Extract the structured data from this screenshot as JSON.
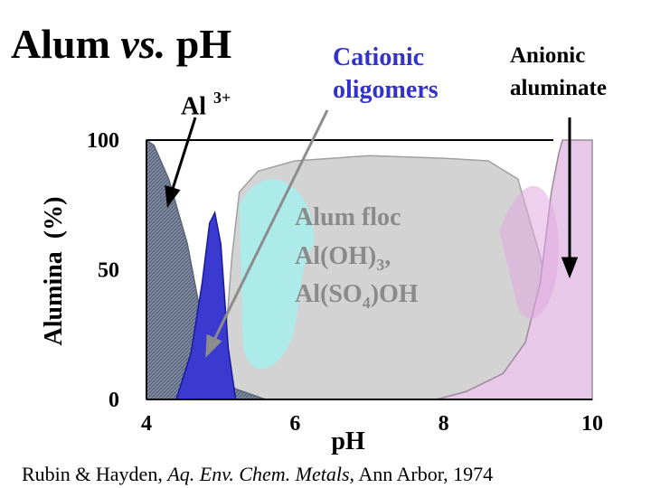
{
  "title": {
    "main": "Alum",
    "vs": "vs.",
    "ph": "pH"
  },
  "labels": {
    "al3": "Al",
    "al3_sup": "3+",
    "cationic_line1": "Cationic",
    "cationic_line2": "oligomers",
    "anionic_line1": "Anionic",
    "anionic_line2": "aluminate",
    "floc_line1": "Alum floc",
    "floc_line2a": "Al(OH)",
    "floc_line2_sub": "3",
    "floc_line2b": ",",
    "floc_line3a": "Al(SO",
    "floc_line3_sub": "4",
    "floc_line3b": ")OH"
  },
  "citation": {
    "authors": "Rubin & Hayden, ",
    "journal": "Aq. Env. Chem. Metals",
    "rest": ", Ann Arbor, 1974"
  },
  "colors": {
    "al3": "#6f7d95",
    "oligomer": "#3a3ad0",
    "floc": "#d3d3d3",
    "floc_cyan": "#a9ecec",
    "aluminate": "#e8c8e8",
    "aluminate_deep": "#e0a8e0",
    "cationic_label": "#3333cc",
    "floc_label": "#8a8a8a"
  },
  "chart_data": {
    "type": "area",
    "xlabel": "pH",
    "ylabel": "Alumina  (%)",
    "xlim": [
      4,
      10
    ],
    "ylim": [
      0,
      100
    ],
    "xticks": [
      4,
      6,
      8,
      10
    ],
    "yticks": [
      0,
      50,
      100
    ],
    "series": [
      {
        "name": "Al 3+",
        "x": [
          4,
          4.1,
          4.3,
          4.55,
          4.75,
          4.95,
          5.2,
          5.5,
          5.6
        ],
        "y": [
          100,
          98,
          85,
          60,
          30,
          12,
          4,
          1,
          0
        ]
      },
      {
        "name": "Cationic oligomers",
        "x": [
          4.4,
          4.6,
          4.75,
          4.85,
          4.92,
          5.0,
          5.1,
          5.2
        ],
        "y": [
          0,
          18,
          45,
          68,
          72,
          60,
          20,
          0
        ]
      },
      {
        "name": "Alum floc",
        "x": [
          5.0,
          5.15,
          5.25,
          5.5,
          6.0,
          7.0,
          8.0,
          8.6,
          9.0,
          9.3,
          9.55,
          9.75,
          10.0
        ],
        "y": [
          0,
          55,
          80,
          88,
          92,
          94,
          93,
          92,
          85,
          55,
          25,
          8,
          0
        ]
      },
      {
        "name": "Anionic aluminate",
        "x": [
          7.9,
          8.3,
          8.8,
          9.1,
          9.3,
          9.45,
          9.55,
          9.6,
          10.0
        ],
        "y": [
          0,
          3,
          10,
          22,
          45,
          80,
          95,
          100,
          100
        ]
      }
    ]
  }
}
